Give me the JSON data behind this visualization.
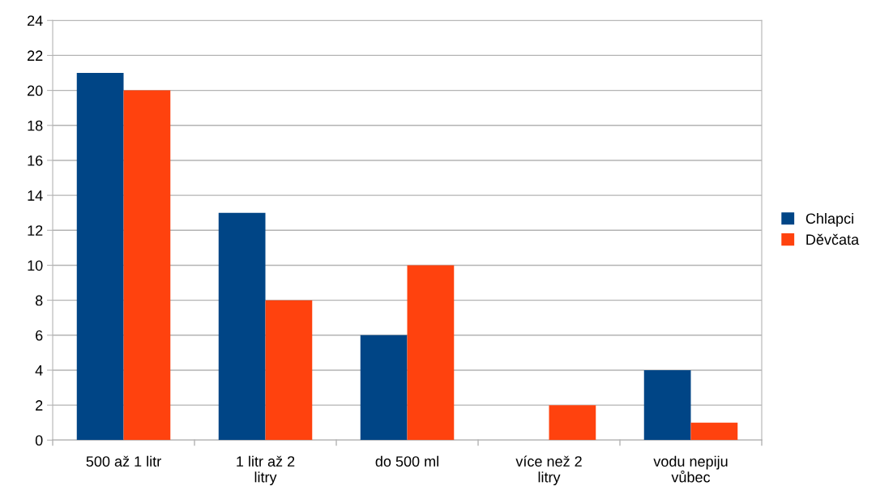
{
  "chart_data": {
    "type": "bar",
    "categories": [
      "500 až 1 litr",
      "1 litr až 2 litry",
      "do 500 ml",
      "více než 2 litry",
      "vodu nepiju vůbec"
    ],
    "series": [
      {
        "name": "Chlapci",
        "color": "#004586",
        "values": [
          21,
          13,
          6,
          0,
          4
        ]
      },
      {
        "name": "Děvčata",
        "color": "#ff420e",
        "values": [
          20,
          8,
          10,
          2,
          1
        ]
      }
    ],
    "ylim": [
      0,
      24
    ],
    "yticks": [
      0,
      2,
      4,
      6,
      8,
      10,
      12,
      14,
      16,
      18,
      20,
      22,
      24
    ],
    "grid": "y",
    "legend": "right"
  }
}
